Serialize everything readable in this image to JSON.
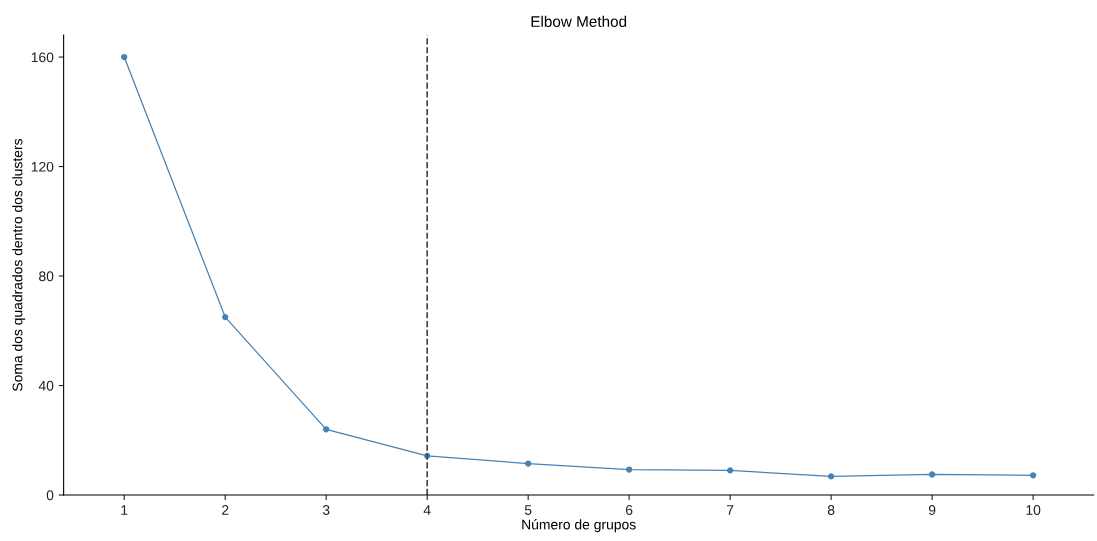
{
  "chart_data": {
    "type": "line",
    "title": "Elbow Method",
    "xlabel": "Número de grupos",
    "ylabel": "Soma dos quadrados dentro dos clusters",
    "x": [
      1,
      2,
      3,
      4,
      5,
      6,
      7,
      8,
      9,
      10
    ],
    "series": [
      {
        "color": "#4682b4",
        "values": [
          160,
          65,
          24,
          14.3,
          11.5,
          9.3,
          9,
          6.8,
          7.5,
          7.2
        ]
      }
    ],
    "xlim": [
      0.4,
      10.6
    ],
    "xticks": [
      1,
      2,
      3,
      4,
      5,
      6,
      7,
      8,
      9,
      10
    ],
    "ylim": [
      0,
      168
    ],
    "yticks": [
      0,
      40,
      80,
      120,
      160
    ],
    "ref_lines": [
      {
        "axis": "x",
        "value": 4,
        "color": "#444444",
        "line_style": "dashed"
      }
    ],
    "marker": "circle",
    "line_style": "solid",
    "grid": false,
    "legend": false
  }
}
